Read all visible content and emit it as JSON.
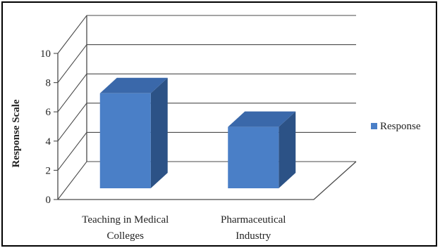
{
  "chart_data": {
    "type": "bar",
    "style": "3d-column",
    "categories": [
      "Teaching in Medical Colleges",
      "Pharmaceutical Industry"
    ],
    "category_lines": [
      [
        "Teaching in Medical",
        "Colleges"
      ],
      [
        "Pharmaceutical",
        "Industry"
      ]
    ],
    "series": [
      {
        "name": "Response",
        "values": [
          6.5,
          4.2
        ]
      }
    ],
    "title": "",
    "xlabel": "",
    "ylabel": "Response Scale",
    "ylim": [
      0,
      10
    ],
    "yticks": [
      "0",
      "2",
      "4",
      "6",
      "8",
      "10"
    ],
    "grid": true,
    "legend": "right",
    "colors": {
      "bar_front": "#4a7fc7",
      "bar_side": "#2c5286",
      "bar_top": "#3a68aa",
      "gridline": "#4a4a4a",
      "legend_swatch": "#4a7fc7"
    }
  }
}
